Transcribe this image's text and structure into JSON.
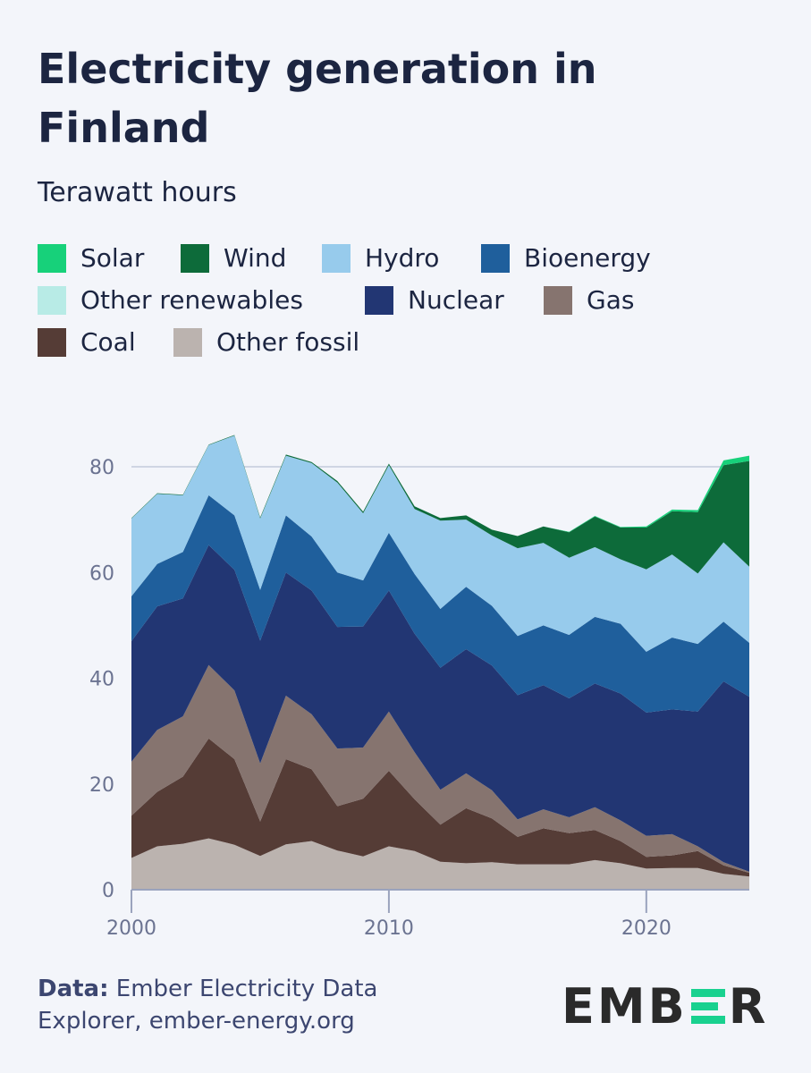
{
  "title": "Electricity generation in Finland",
  "subtitle": "Terawatt hours",
  "legend": [
    {
      "label": "Solar",
      "color": "#17d17a"
    },
    {
      "label": "Wind",
      "color": "#0d6b3a"
    },
    {
      "label": "Hydro",
      "color": "#97cbec"
    },
    {
      "label": "Bioenergy",
      "color": "#1f5f9c"
    },
    {
      "label": "Other renewables",
      "color": "#b8ebe6"
    },
    {
      "label": "Nuclear",
      "color": "#223673"
    },
    {
      "label": "Gas",
      "color": "#86746f"
    },
    {
      "label": "Coal",
      "color": "#553c36"
    },
    {
      "label": "Other fossil",
      "color": "#bbb3af"
    }
  ],
  "footer": {
    "source_label": "Data:",
    "source_text": "Ember Electricity Data Explorer, ember-energy.org"
  },
  "logo": {
    "left": "EMB",
    "right": "R"
  },
  "chart_data": {
    "type": "area",
    "stacked": true,
    "title": "Electricity generation in Finland",
    "ylabel": "Terawatt hours",
    "ylim": [
      0,
      85
    ],
    "yticks": [
      0,
      20,
      40,
      60,
      80
    ],
    "xticks": [
      2000,
      2010,
      2020
    ],
    "grid": true,
    "x": [
      2000,
      2001,
      2002,
      2003,
      2004,
      2005,
      2006,
      2007,
      2008,
      2009,
      2010,
      2011,
      2012,
      2013,
      2014,
      2015,
      2016,
      2017,
      2018,
      2019,
      2020,
      2021,
      2022,
      2023,
      2024
    ],
    "series": [
      {
        "name": "Other fossil",
        "color": "#bbb3af",
        "values": [
          6.0,
          8.2,
          8.7,
          9.7,
          8.5,
          6.4,
          8.6,
          9.2,
          7.4,
          6.3,
          8.2,
          7.3,
          5.3,
          5.0,
          5.2,
          4.8,
          4.8,
          4.8,
          5.6,
          5.0,
          4.0,
          4.1,
          4.1,
          3.0,
          2.5
        ]
      },
      {
        "name": "Coal",
        "color": "#553c36",
        "values": [
          8.0,
          10.3,
          12.7,
          18.9,
          16.2,
          6.5,
          16.1,
          13.6,
          8.4,
          10.9,
          14.3,
          9.8,
          7.0,
          10.4,
          8.3,
          5.2,
          6.8,
          5.9,
          5.7,
          4.2,
          2.2,
          2.4,
          3.2,
          1.6,
          0.7
        ]
      },
      {
        "name": "Gas",
        "color": "#86746f",
        "values": [
          10.2,
          11.7,
          11.4,
          13.9,
          13.0,
          11.0,
          12.0,
          10.4,
          10.9,
          9.7,
          11.2,
          8.9,
          6.6,
          6.6,
          5.3,
          3.3,
          3.6,
          3.0,
          4.3,
          3.9,
          4.0,
          4.0,
          0.9,
          0.6,
          0.2
        ]
      },
      {
        "name": "Nuclear",
        "color": "#223673",
        "values": [
          22.8,
          23.4,
          22.3,
          22.7,
          22.8,
          23.2,
          23.3,
          23.4,
          23.0,
          22.9,
          22.9,
          22.4,
          23.1,
          23.5,
          23.6,
          23.5,
          23.5,
          22.5,
          23.4,
          24.0,
          23.3,
          23.6,
          25.5,
          34.2,
          33.1
        ]
      },
      {
        "name": "Other renewables",
        "color": "#b8ebe6",
        "values": [
          0,
          0,
          0,
          0,
          0,
          0,
          0,
          0,
          0,
          0,
          0,
          0,
          0,
          0,
          0,
          0,
          0,
          0,
          0,
          0,
          0,
          0,
          0,
          0,
          0
        ]
      },
      {
        "name": "Bioenergy",
        "color": "#1f5f9c",
        "values": [
          8.5,
          8.0,
          8.8,
          9.4,
          10.3,
          9.6,
          10.8,
          10.2,
          10.3,
          8.7,
          10.9,
          11.3,
          11.1,
          11.8,
          11.3,
          11.2,
          11.3,
          12.0,
          12.6,
          13.2,
          11.5,
          13.6,
          12.8,
          11.3,
          10.2
        ]
      },
      {
        "name": "Hydro",
        "color": "#97cbec",
        "values": [
          14.7,
          13.3,
          10.7,
          9.5,
          15.1,
          13.5,
          11.3,
          13.9,
          17.0,
          12.7,
          12.8,
          12.3,
          16.7,
          12.7,
          13.3,
          16.6,
          15.6,
          14.6,
          13.2,
          12.2,
          15.6,
          15.7,
          13.3,
          15.0,
          14.4
        ]
      },
      {
        "name": "Wind",
        "color": "#0d6b3a",
        "values": [
          0.1,
          0.1,
          0.1,
          0.1,
          0.1,
          0.2,
          0.2,
          0.2,
          0.3,
          0.3,
          0.3,
          0.5,
          0.5,
          0.8,
          1.1,
          2.3,
          3.1,
          4.8,
          5.8,
          6.0,
          7.9,
          8.2,
          11.6,
          14.6,
          20.0
        ]
      },
      {
        "name": "Solar",
        "color": "#17d17a",
        "values": [
          0,
          0,
          0,
          0,
          0,
          0,
          0,
          0,
          0,
          0,
          0,
          0,
          0,
          0,
          0,
          0,
          0,
          0.1,
          0.1,
          0.1,
          0.2,
          0.3,
          0.4,
          0.9,
          1.0
        ]
      }
    ]
  }
}
